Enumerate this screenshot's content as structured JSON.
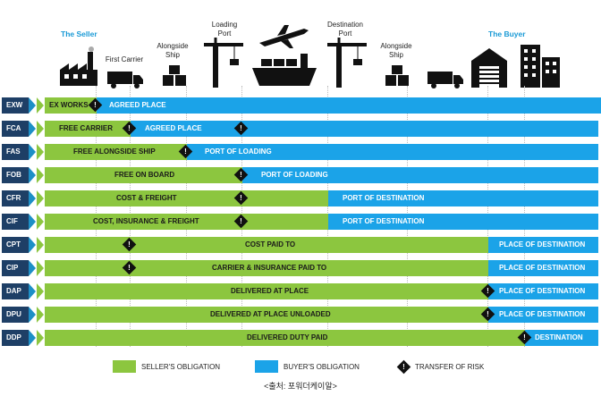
{
  "header": {
    "seller": "The Seller",
    "first_carrier": "First Carrier",
    "alongside_ship_1": "Alongside Ship",
    "loading_port": "Loading Port",
    "destination_port": "Destination Port",
    "alongside_ship_2": "Alongside Ship",
    "buyer": "The Buyer"
  },
  "rows": [
    {
      "code": "EXW",
      "seller": "EX WORKS",
      "buyer": "AGREED PLACE",
      "risk_after": "exworks"
    },
    {
      "code": "FCA",
      "seller": "FREE CARRIER",
      "buyer": "AGREED PLACE"
    },
    {
      "code": "FAS",
      "seller": "FREE ALONGSIDE SHIP",
      "buyer": "PORT OF LOADING"
    },
    {
      "code": "FOB",
      "seller": "FREE  ON BOARD",
      "buyer": "PORT OF LOADING"
    },
    {
      "code": "CFR",
      "seller": "COST & FREIGHT",
      "buyer": "PORT OF DESTINATION"
    },
    {
      "code": "CIF",
      "seller": "COST, INSURANCE & FREIGHT",
      "buyer": "PORT OF DESTINATION"
    },
    {
      "code": "CPT",
      "seller": "COST PAID TO",
      "buyer": "PLACE OF DESTINATION"
    },
    {
      "code": "CIP",
      "seller": "CARRIER & INSURANCE PAID TO",
      "buyer": "PLACE OF DESTINATION"
    },
    {
      "code": "DAP",
      "seller": "DELIVERED AT PLACE",
      "buyer": "PLACE OF DESTINATION"
    },
    {
      "code": "DPU",
      "seller": "DELIVERED AT PLACE UNLOADED",
      "buyer": "PLACE OF DESTINATION"
    },
    {
      "code": "DDP",
      "seller": "DELIVERED DUTY PAID",
      "buyer": "DESTINATION"
    }
  ],
  "risk_symbol": "!",
  "legend": {
    "seller": "SELLER'S OBLIGATION",
    "buyer": "BUYER'S OBLIGATION",
    "risk": "TRANSFER OF RISK"
  },
  "source": "<출처: 포워더케이알>",
  "colors": {
    "seller": "#8cc63f",
    "buyer": "#1ba3e8",
    "code_bg": "#1e3f66",
    "party": "#1a9ad6"
  }
}
